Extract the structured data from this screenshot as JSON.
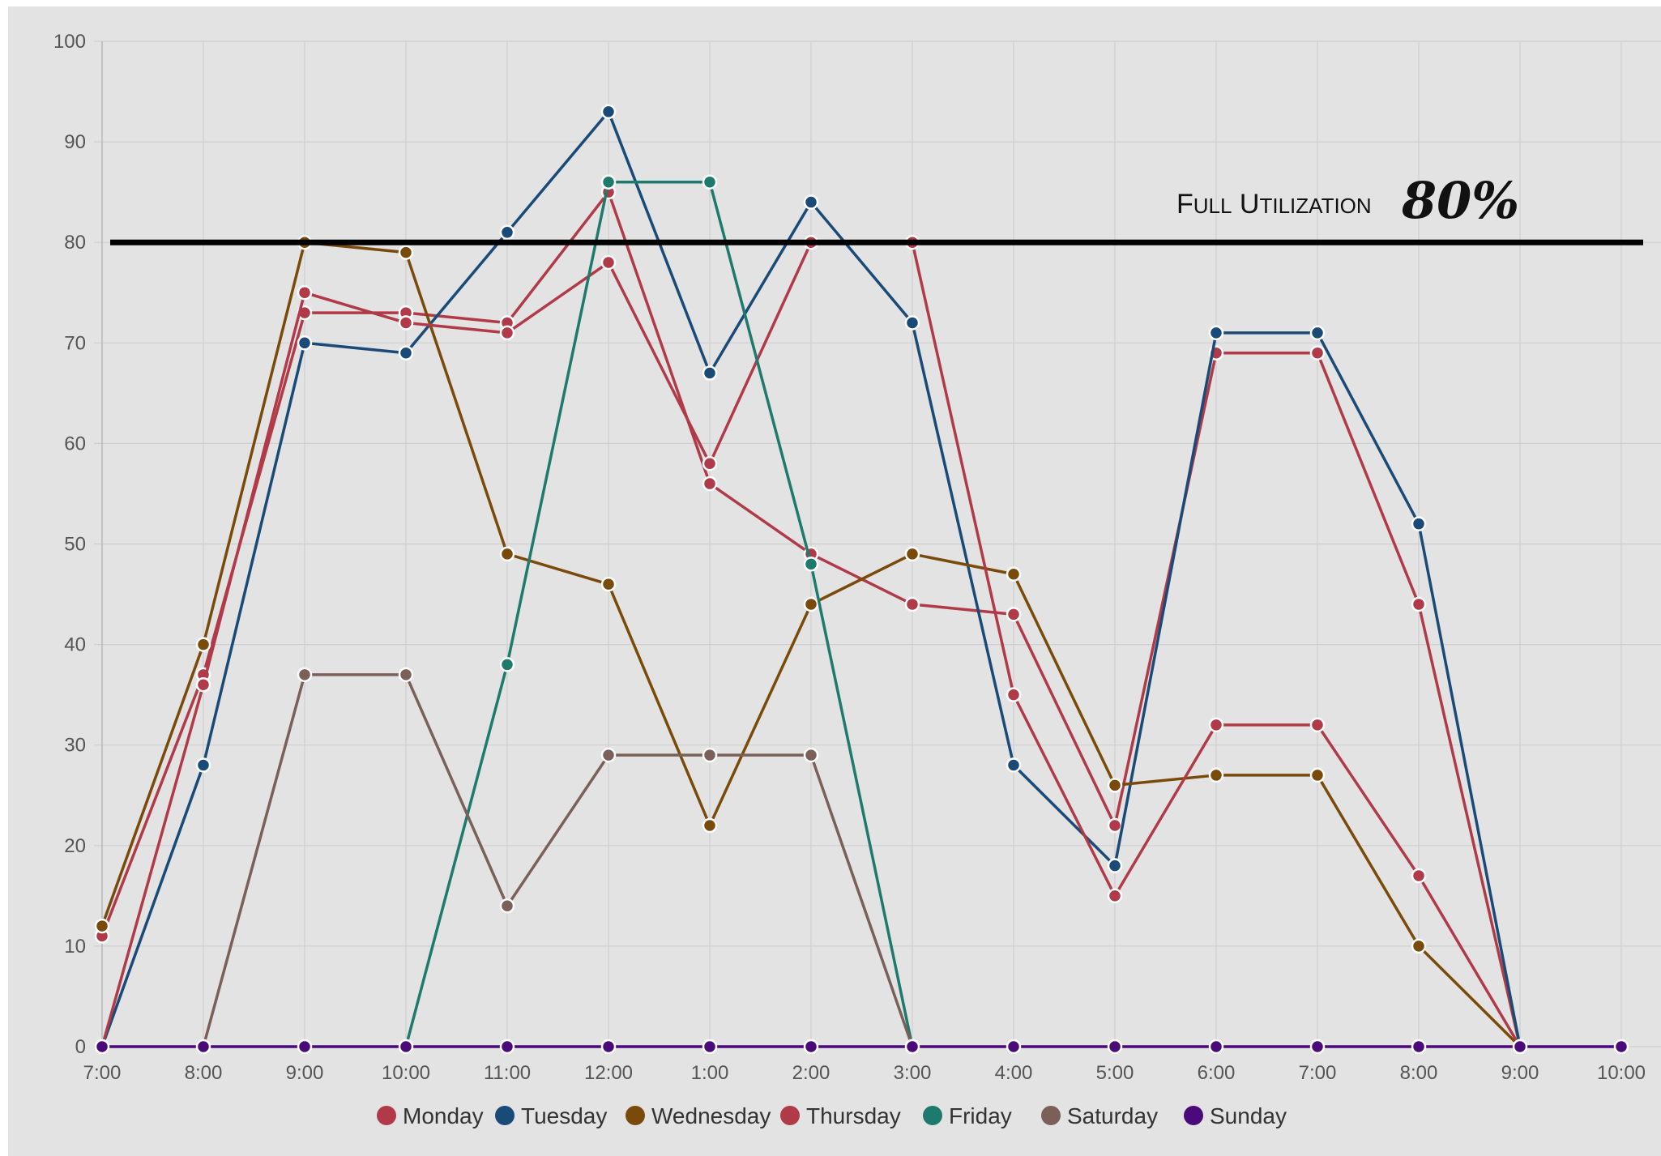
{
  "chart_data": {
    "type": "line",
    "title": "",
    "xlabel": "",
    "ylabel": "",
    "ylim": [
      0,
      100
    ],
    "yticks": [
      0,
      10,
      20,
      30,
      40,
      50,
      60,
      70,
      80,
      90,
      100
    ],
    "grid": true,
    "legend_position": "bottom",
    "categories": [
      "7:00",
      "8:00",
      "9:00",
      "10:00",
      "11:00",
      "12:00",
      "1:00",
      "2:00",
      "3:00",
      "4:00",
      "5:00",
      "6:00",
      "7:00",
      "8:00",
      "9:00",
      "10:00"
    ],
    "series": [
      {
        "name": "Monday",
        "color": "#b03a48",
        "values": [
          11,
          37,
          73,
          73,
          72,
          85,
          56,
          49,
          44,
          43,
          22,
          69,
          69,
          44,
          0,
          null
        ]
      },
      {
        "name": "Tuesday",
        "color": "#1a4a78",
        "values": [
          0,
          28,
          70,
          69,
          81,
          93,
          67,
          84,
          72,
          28,
          18,
          71,
          71,
          52,
          0,
          null
        ]
      },
      {
        "name": "Wednesday",
        "color": "#7a4a0a",
        "values": [
          12,
          40,
          80,
          79,
          49,
          46,
          22,
          44,
          49,
          47,
          26,
          27,
          27,
          10,
          0,
          null
        ]
      },
      {
        "name": "Thursday",
        "color": "#b03a48",
        "values": [
          0,
          36,
          75,
          72,
          71,
          78,
          58,
          80,
          80,
          35,
          15,
          32,
          32,
          17,
          0,
          null
        ]
      },
      {
        "name": "Friday",
        "color": "#1f7a6e",
        "values": [
          null,
          null,
          null,
          0,
          38,
          86,
          86,
          48,
          0,
          null,
          null,
          null,
          null,
          null,
          null,
          null
        ]
      },
      {
        "name": "Saturday",
        "color": "#7a6058",
        "values": [
          null,
          0,
          37,
          37,
          14,
          29,
          29,
          29,
          0,
          null,
          null,
          null,
          null,
          null,
          null,
          null
        ]
      },
      {
        "name": "Sunday",
        "color": "#4a0a7a",
        "values": [
          0,
          0,
          0,
          0,
          0,
          0,
          0,
          0,
          0,
          0,
          0,
          0,
          0,
          0,
          0,
          0
        ]
      }
    ],
    "reference_line": {
      "value": 80,
      "label": "Full Utilization",
      "value_label": "80%",
      "color": "#000000"
    }
  }
}
